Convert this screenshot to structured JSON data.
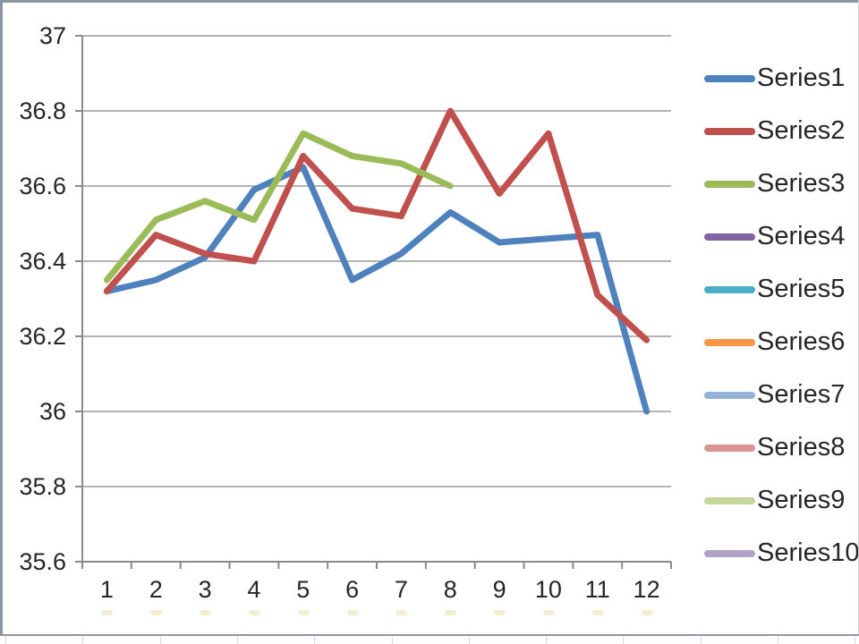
{
  "chart_data": {
    "type": "line",
    "title": "",
    "categories": [
      "1",
      "2",
      "3",
      "4",
      "5",
      "6",
      "7",
      "8",
      "9",
      "10",
      "11",
      "12"
    ],
    "series": [
      {
        "name": "Series1",
        "color": "#4F81BD",
        "values": [
          36.32,
          36.35,
          36.41,
          36.59,
          36.65,
          36.35,
          36.42,
          36.53,
          36.45,
          36.46,
          36.47,
          36.0
        ]
      },
      {
        "name": "Series2",
        "color": "#C0504D",
        "values": [
          36.32,
          36.47,
          36.42,
          36.4,
          36.68,
          36.54,
          36.52,
          36.8,
          36.58,
          36.74,
          36.31,
          36.19
        ]
      },
      {
        "name": "Series3",
        "color": "#9BBB59",
        "values": [
          36.35,
          36.51,
          36.56,
          36.51,
          36.74,
          36.68,
          36.66,
          36.6,
          null,
          null,
          null,
          null
        ]
      },
      {
        "name": "Series4",
        "color": "#8064A2",
        "values": []
      },
      {
        "name": "Series5",
        "color": "#4BACC6",
        "values": []
      },
      {
        "name": "Series6",
        "color": "#F79646",
        "values": []
      },
      {
        "name": "Series7",
        "color": "#95B3D7",
        "values": []
      },
      {
        "name": "Series8",
        "color": "#D99694",
        "values": []
      },
      {
        "name": "Series9",
        "color": "#C3D69B",
        "values": []
      },
      {
        "name": "Series10",
        "color": "#B3A2C7",
        "values": []
      }
    ],
    "ylim": [
      35.6,
      37
    ],
    "y_ticks": [
      {
        "label": "37",
        "value": 37.0
      },
      {
        "label": "36.8",
        "value": 36.8
      },
      {
        "label": "36.6",
        "value": 36.6
      },
      {
        "label": "36.4",
        "value": 36.4
      },
      {
        "label": "36.2",
        "value": 36.2
      },
      {
        "label": "36",
        "value": 36.0
      },
      {
        "label": "35.8",
        "value": 35.8
      },
      {
        "label": "35.6",
        "value": 35.6
      }
    ],
    "xlabel": "",
    "ylabel": "",
    "grid": true,
    "legend_position": "right"
  },
  "colors": {
    "gridline": "#9b9b9b",
    "axis": "#8a8a8a",
    "text": "#262626",
    "frame": "#8b95a3",
    "bottom_line": "#9098a2",
    "cell_border": "#d9dde2"
  }
}
